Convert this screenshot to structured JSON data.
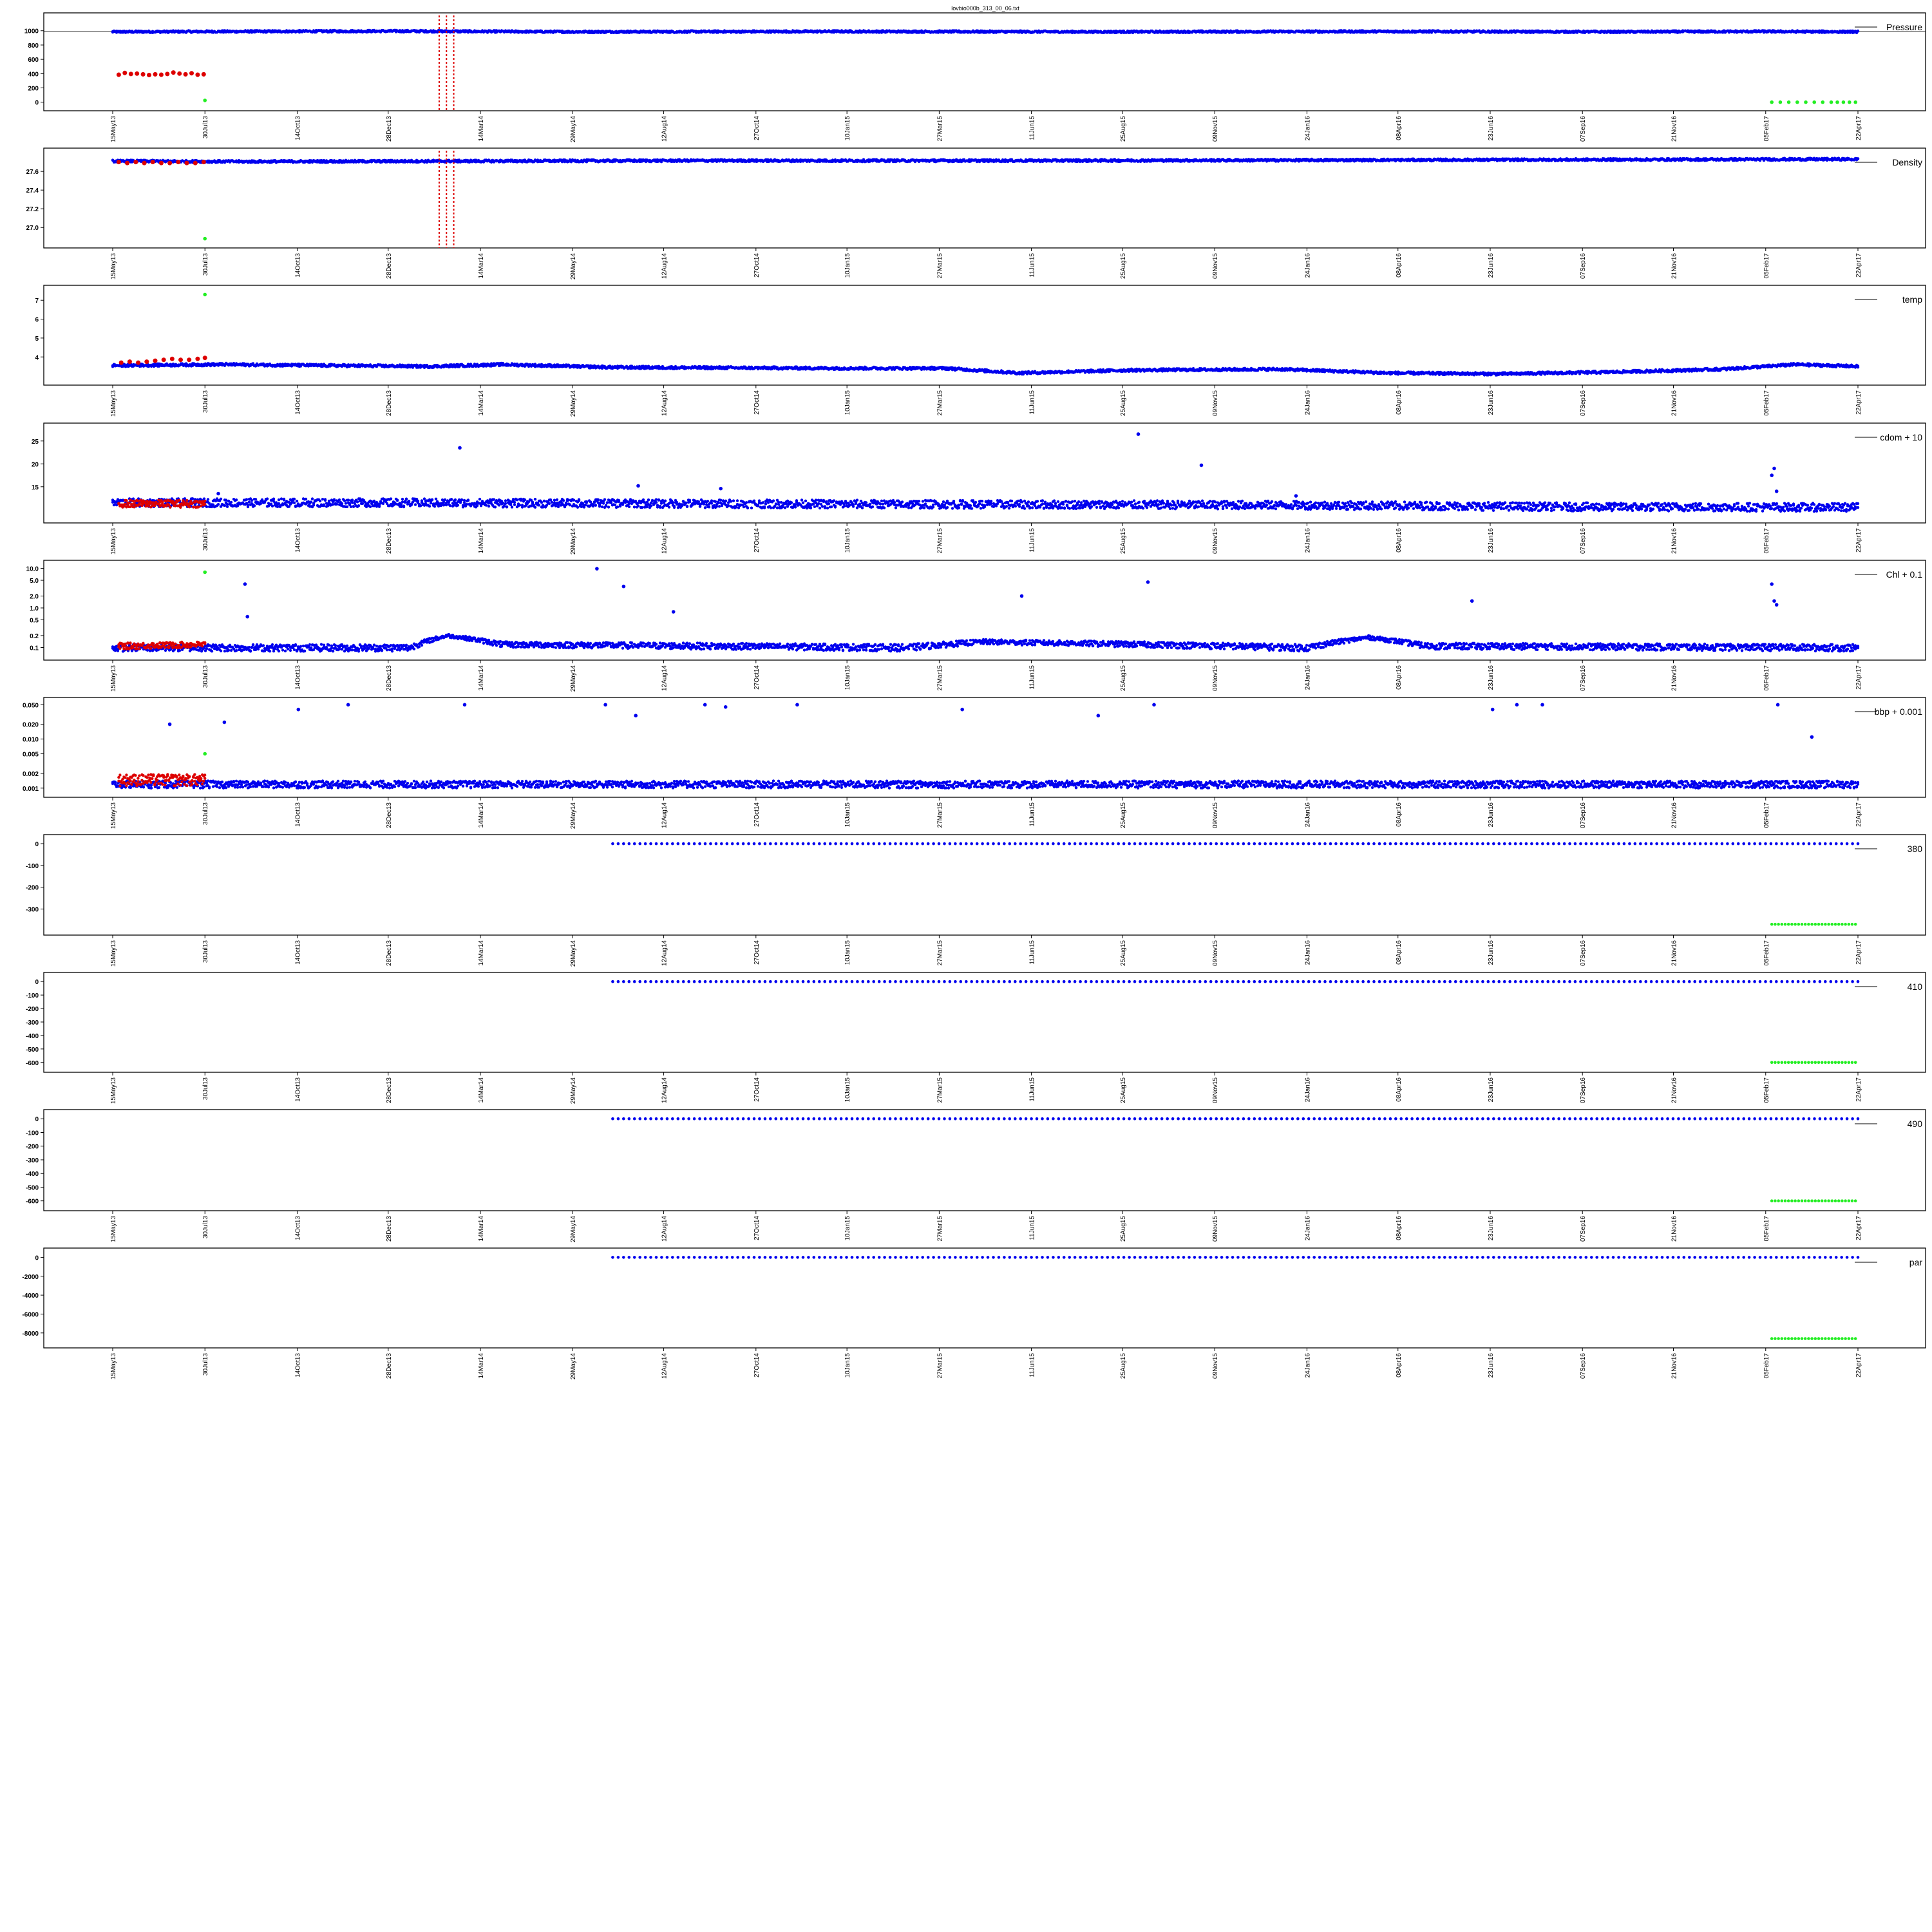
{
  "figure_title": "lovbio000b_313_00_06.txt",
  "colors": {
    "main": "#0000ee",
    "flag_red": "#dd0000",
    "flag_green": "#22ee22",
    "axis": "#000000"
  },
  "x_axis": {
    "type": "date",
    "range": [
      "2013-05-15",
      "2017-04-22"
    ],
    "tick_labels": [
      "15May13",
      "30Jul13",
      "14Oct13",
      "28Dec13",
      "14Mar14",
      "29May14",
      "12Aug14",
      "27Oct14",
      "10Jan15",
      "27Mar15",
      "11Jun15",
      "25Aug15",
      "09Nov15",
      "24Jan16",
      "08Apr16",
      "23Jun16",
      "07Sep16",
      "21Nov16",
      "05Feb17",
      "22Apr17"
    ],
    "tick_dates": [
      "2013-05-15",
      "2013-07-30",
      "2013-10-14",
      "2013-12-28",
      "2014-03-14",
      "2014-05-29",
      "2014-08-12",
      "2014-10-27",
      "2015-01-10",
      "2015-03-27",
      "2015-06-11",
      "2015-08-25",
      "2015-11-09",
      "2016-01-24",
      "2016-04-08",
      "2016-06-23",
      "2016-09-07",
      "2016-11-21",
      "2017-02-05",
      "2017-04-22"
    ]
  },
  "chart_data": [
    {
      "type": "scatter",
      "legend": "Pressure",
      "y_ticks": [
        "0",
        "200",
        "400",
        "600",
        "800",
        "1000"
      ],
      "ylim": [
        -30,
        1160
      ],
      "series": [
        {
          "color": "blue",
          "kind": "band",
          "x": [
            "2013-05-15",
            "2013-09-01",
            "2014-01-01",
            "2014-06-01",
            "2015-01-01",
            "2015-08-01",
            "2016-04-01",
            "2016-10-01",
            "2017-02-01",
            "2017-04-22"
          ],
          "y": [
            985,
            990,
            995,
            985,
            990,
            985,
            990,
            985,
            990,
            985
          ],
          "spread": 14
        },
        {
          "color": "red",
          "kind": "points",
          "x": [
            "2013-05-20",
            "2013-05-25",
            "2013-05-30",
            "2013-06-04",
            "2013-06-09",
            "2013-06-14",
            "2013-06-19",
            "2013-06-24",
            "2013-06-29",
            "2013-07-04",
            "2013-07-09",
            "2013-07-14",
            "2013-07-19",
            "2013-07-24",
            "2013-07-29"
          ],
          "y": [
            385,
            410,
            395,
            400,
            390,
            380,
            390,
            385,
            395,
            415,
            400,
            390,
            405,
            385,
            390
          ]
        },
        {
          "color": "green",
          "kind": "points",
          "x": [
            "2013-07-30"
          ],
          "y": [
            25
          ]
        },
        {
          "color": "green",
          "kind": "points",
          "x": [
            "2017-02-10",
            "2017-02-17",
            "2017-02-24",
            "2017-03-03",
            "2017-03-10",
            "2017-03-17",
            "2017-03-24",
            "2017-03-31",
            "2017-04-05",
            "2017-04-10",
            "2017-04-15",
            "2017-04-20"
          ],
          "y": [
            0,
            0,
            0,
            0,
            0,
            0,
            0,
            0,
            0,
            0,
            0,
            0
          ]
        }
      ]
    },
    {
      "type": "scatter",
      "legend": "Density",
      "y_ticks": [
        "27.0",
        "27.2",
        "27.4",
        "27.6"
      ],
      "ylim": [
        26.85,
        27.78
      ],
      "series": [
        {
          "color": "blue",
          "kind": "band",
          "x": [
            "2013-05-15",
            "2013-09-01",
            "2014-03-01",
            "2014-09-01",
            "2015-06-01",
            "2016-02-01",
            "2016-09-01",
            "2017-04-22"
          ],
          "y": [
            27.71,
            27.705,
            27.71,
            27.715,
            27.715,
            27.72,
            27.725,
            27.73
          ],
          "spread": 0.012
        },
        {
          "color": "red",
          "kind": "points",
          "x": [
            "2013-05-20",
            "2013-05-27",
            "2013-06-03",
            "2013-06-10",
            "2013-06-17",
            "2013-06-24",
            "2013-07-01",
            "2013-07-08",
            "2013-07-15",
            "2013-07-22",
            "2013-07-29"
          ],
          "y": [
            27.7,
            27.69,
            27.7,
            27.69,
            27.7,
            27.69,
            27.69,
            27.7,
            27.69,
            27.69,
            27.7
          ]
        },
        {
          "color": "green",
          "kind": "points",
          "x": [
            "2013-07-30"
          ],
          "y": [
            26.88
          ]
        }
      ]
    },
    {
      "type": "scatter",
      "legend": "temp",
      "y_ticks": [
        "4",
        "5",
        "6",
        "7"
      ],
      "ylim": [
        2.85,
        7.45
      ],
      "series": [
        {
          "color": "blue",
          "kind": "band",
          "x": [
            "2013-05-15",
            "2013-08-15",
            "2013-11-01",
            "2014-02-01",
            "2014-04-01",
            "2014-07-01",
            "2015-01-01",
            "2015-04-01",
            "2015-06-01",
            "2015-09-01",
            "2016-01-01",
            "2016-04-01",
            "2016-07-01",
            "2016-10-01",
            "2017-01-01",
            "2017-03-01",
            "2017-04-22"
          ],
          "y": [
            3.55,
            3.6,
            3.55,
            3.5,
            3.6,
            3.45,
            3.4,
            3.4,
            3.15,
            3.3,
            3.35,
            3.15,
            3.1,
            3.2,
            3.35,
            3.6,
            3.5
          ],
          "spread": 0.07
        },
        {
          "color": "red",
          "kind": "points",
          "x": [
            "2013-05-22",
            "2013-05-29",
            "2013-06-05",
            "2013-06-12",
            "2013-06-19",
            "2013-06-26",
            "2013-07-03",
            "2013-07-10",
            "2013-07-17",
            "2013-07-24",
            "2013-07-30"
          ],
          "y": [
            3.7,
            3.75,
            3.7,
            3.75,
            3.8,
            3.85,
            3.9,
            3.85,
            3.85,
            3.9,
            3.95
          ]
        },
        {
          "color": "green",
          "kind": "points",
          "x": [
            "2013-07-30"
          ],
          "y": [
            7.3
          ]
        }
      ]
    },
    {
      "type": "scatter",
      "legend": "cdom + 10",
      "y_ticks": [
        "15",
        "20",
        "25"
      ],
      "ylim": [
        8.5,
        27.5
      ],
      "series": [
        {
          "color": "blue",
          "kind": "band",
          "x": [
            "2013-05-15",
            "2014-01-01",
            "2015-01-01",
            "2016-01-01",
            "2016-09-01",
            "2017-04-22"
          ],
          "y": [
            11.5,
            11.5,
            11.2,
            11.0,
            10.6,
            10.5
          ],
          "spread": 0.9
        },
        {
          "color": "blue",
          "kind": "points",
          "x": [
            "2013-08-10",
            "2014-02-25",
            "2014-07-22",
            "2014-09-28",
            "2015-09-07",
            "2015-10-29",
            "2016-01-15",
            "2017-02-10",
            "2017-02-12",
            "2017-02-14"
          ],
          "y": [
            13.5,
            23.5,
            15.2,
            14.6,
            26.5,
            19.7,
            13.0,
            17.5,
            19.0,
            14.0
          ]
        },
        {
          "color": "red",
          "kind": "band",
          "x": [
            "2013-05-20",
            "2013-07-30"
          ],
          "y": [
            11.3,
            11.3
          ],
          "spread": 0.8
        }
      ]
    },
    {
      "type": "scatter",
      "legend": "Chl + 0.1",
      "y_scale": "log",
      "y_ticks": [
        "0.1",
        "0.2",
        "0.5",
        "1.0",
        "2.0",
        "5.0",
        "10.0"
      ],
      "ylim": [
        0.07,
        11
      ],
      "series": [
        {
          "color": "blue",
          "kind": "band",
          "x": [
            "2013-05-15",
            "2014-01-15",
            "2014-02-15",
            "2014-04-01",
            "2015-03-01",
            "2015-05-01",
            "2016-01-25",
            "2016-03-15",
            "2016-05-01",
            "2017-04-22"
          ],
          "y": [
            0.1,
            0.1,
            0.2,
            0.12,
            0.1,
            0.14,
            0.1,
            0.18,
            0.11,
            0.1
          ],
          "spread": 0.02
        },
        {
          "color": "blue",
          "kind": "points",
          "x": [
            "2013-09-01",
            "2013-09-03",
            "2014-06-18",
            "2014-07-10",
            "2014-08-20",
            "2015-06-03",
            "2015-09-15",
            "2016-06-08",
            "2017-02-10",
            "2017-02-12",
            "2017-02-14"
          ],
          "y": [
            4.0,
            0.6,
            9.8,
            3.5,
            0.8,
            2.0,
            4.5,
            1.5,
            4.0,
            1.5,
            1.2
          ]
        },
        {
          "color": "red",
          "kind": "band",
          "x": [
            "2013-05-20",
            "2013-07-30"
          ],
          "y": [
            0.11,
            0.12
          ],
          "spread": 0.02
        },
        {
          "color": "green",
          "kind": "points",
          "x": [
            "2013-07-30"
          ],
          "y": [
            8.0
          ]
        }
      ]
    },
    {
      "type": "scatter",
      "legend": "bbp + 0.001",
      "y_scale": "log",
      "y_ticks": [
        "0.001",
        "0.002",
        "0.005",
        "0.010",
        "0.020",
        "0.050"
      ],
      "ylim": [
        0.00088,
        0.052
      ],
      "series": [
        {
          "color": "blue",
          "kind": "band",
          "x": [
            "2013-05-15",
            "2017-04-22"
          ],
          "y": [
            0.0012,
            0.0012
          ],
          "spread": 0.0002
        },
        {
          "color": "blue",
          "kind": "points",
          "x": [
            "2013-07-01",
            "2013-08-15",
            "2013-10-15",
            "2013-11-25",
            "2014-03-01",
            "2014-06-25",
            "2014-07-20",
            "2014-09-15",
            "2014-10-02",
            "2014-11-30",
            "2015-04-15",
            "2015-08-05",
            "2015-09-20",
            "2016-06-25",
            "2016-07-15",
            "2016-08-05",
            "2017-02-15",
            "2017-03-15"
          ],
          "y": [
            0.02,
            0.022,
            0.04,
            0.05,
            0.05,
            0.05,
            0.03,
            0.05,
            0.045,
            0.05,
            0.04,
            0.03,
            0.05,
            0.04,
            0.05,
            0.05,
            0.05,
            0.011
          ]
        },
        {
          "color": "red",
          "kind": "band",
          "x": [
            "2013-05-20",
            "2013-07-30"
          ],
          "y": [
            0.0015,
            0.0015
          ],
          "spread": 0.0004
        },
        {
          "color": "green",
          "kind": "points",
          "x": [
            "2013-07-30"
          ],
          "y": [
            0.005
          ]
        }
      ]
    },
    {
      "type": "scatter",
      "legend": "380",
      "y_ticks": [
        "-300",
        "-200",
        "-100",
        "0"
      ],
      "ylim": [
        -390,
        12
      ],
      "series": [
        {
          "color": "blue",
          "kind": "points",
          "x_from": "2014-07-01",
          "x_to": "2017-04-22",
          "count": 230,
          "y": 0
        },
        {
          "color": "green",
          "kind": "points",
          "x_from": "2017-02-10",
          "x_to": "2017-04-20",
          "count": 26,
          "y": -370
        }
      ]
    },
    {
      "type": "scatter",
      "legend": "410",
      "y_ticks": [
        "-600",
        "-500",
        "-400",
        "-300",
        "-200",
        "-100",
        "0"
      ],
      "ylim": [
        -625,
        20
      ],
      "series": [
        {
          "color": "blue",
          "kind": "points",
          "x_from": "2014-07-01",
          "x_to": "2017-04-22",
          "count": 230,
          "y": 0
        },
        {
          "color": "green",
          "kind": "points",
          "x_from": "2017-02-10",
          "x_to": "2017-04-20",
          "count": 26,
          "y": -600
        }
      ]
    },
    {
      "type": "scatter",
      "legend": "490",
      "y_ticks": [
        "-600",
        "-500",
        "-400",
        "-300",
        "-200",
        "-100",
        "0"
      ],
      "ylim": [
        -625,
        20
      ],
      "series": [
        {
          "color": "blue",
          "kind": "points",
          "x_from": "2014-07-01",
          "x_to": "2017-04-22",
          "count": 230,
          "y": 0
        },
        {
          "color": "green",
          "kind": "points",
          "x_from": "2017-02-10",
          "x_to": "2017-04-20",
          "count": 26,
          "y": -600
        }
      ]
    },
    {
      "type": "scatter",
      "legend": "par",
      "y_ticks": [
        "-8000",
        "-6000",
        "-4000",
        "-2000",
        "0"
      ],
      "ylim": [
        -8900,
        300
      ],
      "series": [
        {
          "color": "blue",
          "kind": "points",
          "x_from": "2014-07-01",
          "x_to": "2017-04-22",
          "count": 230,
          "y": 0
        },
        {
          "color": "green",
          "kind": "points",
          "x_from": "2017-02-10",
          "x_to": "2017-04-20",
          "count": 26,
          "y": -8600
        }
      ]
    }
  ]
}
